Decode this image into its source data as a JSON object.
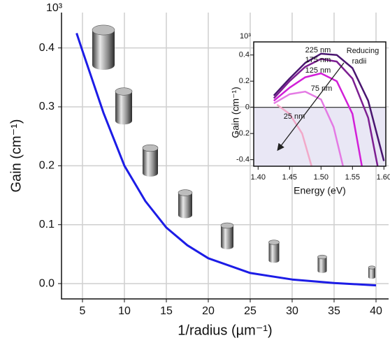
{
  "chart_data": [
    {
      "type": "line",
      "x_label": "1/radius (µm⁻¹)",
      "y_label": "Gain (cm⁻¹)",
      "y_multiplier": "10³",
      "x": [
        4.3,
        5,
        7.5,
        10,
        12.5,
        15,
        17.5,
        20,
        25,
        30,
        35,
        40
      ],
      "values": [
        0.425,
        0.395,
        0.29,
        0.2,
        0.14,
        0.095,
        0.065,
        0.043,
        0.018,
        0.007,
        0.001,
        -0.003
      ],
      "color": "#1c1ce6",
      "xlim": [
        2.5,
        41.5
      ],
      "ylim": [
        -0.026,
        0.46
      ],
      "xticks": [
        5,
        10,
        15,
        20,
        25,
        30,
        35,
        40
      ],
      "yticks": [
        {
          "value": 0,
          "label": "0.0"
        },
        0.1,
        0.2,
        0.3,
        0.4
      ],
      "grid": true
    },
    {
      "type": "line",
      "x_label": "Energy (eV)",
      "y_label": "Gain (cm⁻¹)",
      "y_multiplier": "10³",
      "annotations": [
        "Reducing",
        "radii"
      ],
      "series": [
        {
          "name": "225 nm",
          "color": "#4a1670",
          "x": [
            1.425,
            1.45,
            1.475,
            1.5,
            1.525,
            1.55,
            1.575,
            1.6
          ],
          "values": [
            0.09,
            0.22,
            0.34,
            0.41,
            0.4,
            0.3,
            0.05,
            -0.41
          ]
        },
        {
          "name": "175 nm",
          "color": "#7d1f92",
          "x": [
            1.425,
            1.45,
            1.475,
            1.5,
            1.525,
            1.55,
            1.575,
            1.59
          ],
          "values": [
            0.07,
            0.2,
            0.31,
            0.37,
            0.35,
            0.22,
            -0.08,
            -0.45
          ]
        },
        {
          "name": "125 nm",
          "color": "#d21fd8",
          "x": [
            1.425,
            1.45,
            1.475,
            1.5,
            1.525,
            1.55,
            1.565
          ],
          "values": [
            0.05,
            0.15,
            0.23,
            0.26,
            0.2,
            -0.05,
            -0.45
          ]
        },
        {
          "name": "75 nm",
          "color": "#e47ae4",
          "x": [
            1.425,
            1.45,
            1.475,
            1.5,
            1.52,
            1.535
          ],
          "values": [
            0.03,
            0.1,
            0.12,
            0.06,
            -0.15,
            -0.45
          ]
        },
        {
          "name": "25 nm",
          "color": "#f2a9c9",
          "x": [
            1.43,
            1.45,
            1.47,
            1.485
          ],
          "values": [
            0.02,
            -0.05,
            -0.2,
            -0.45
          ]
        }
      ],
      "xlim": [
        1.393,
        1.603
      ],
      "ylim": [
        -0.45,
        0.5
      ],
      "xticks": [
        {
          "value": 1.4,
          "label": "1.40"
        },
        {
          "value": 1.45,
          "label": "1.45"
        },
        {
          "value": 1.5,
          "label": "1.50"
        },
        {
          "value": 1.55,
          "label": "1.55"
        },
        {
          "value": 1.6,
          "label": "1.60"
        }
      ],
      "yticks": [
        -0.4,
        -0.2,
        0,
        0.2,
        0.4
      ],
      "grid": false
    }
  ]
}
